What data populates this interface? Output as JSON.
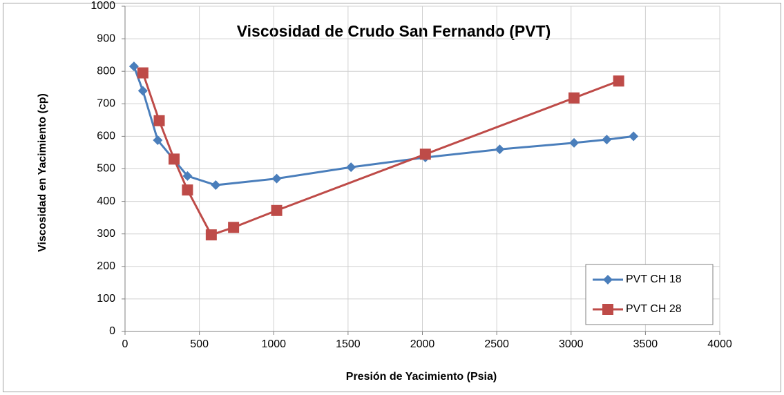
{
  "chart_data": {
    "type": "line",
    "title": "Viscosidad de  Crudo San Fernando (PVT)",
    "xlabel": "Presión de Yacimiento (Psia)",
    "ylabel": "Viscosidad  en Yacimiento (cp)",
    "xlim": [
      0,
      4000
    ],
    "xticks": [
      0,
      500,
      1000,
      1500,
      2000,
      2500,
      3000,
      3500,
      4000
    ],
    "ylim": [
      0,
      1000
    ],
    "yticks": [
      0,
      100,
      200,
      300,
      400,
      500,
      600,
      700,
      800,
      900,
      1000
    ],
    "grid": true,
    "legend": "bottom-right",
    "series": [
      {
        "name": "PVT CH 18",
        "color": "#4a7ebb",
        "marker": "diamond",
        "x": [
          60,
          120,
          220,
          420,
          610,
          1020,
          1520,
          2020,
          2520,
          3020,
          3240,
          3420
        ],
        "values": [
          815,
          740,
          588,
          478,
          450,
          470,
          505,
          535,
          560,
          580,
          590,
          600
        ]
      },
      {
        "name": "PVT CH 28",
        "color": "#be4b48",
        "marker": "square",
        "x": [
          120,
          230,
          330,
          420,
          580,
          730,
          1020,
          2020,
          3020,
          3320
        ],
        "values": [
          795,
          648,
          530,
          435,
          297,
          320,
          372,
          545,
          718,
          770
        ]
      }
    ]
  }
}
